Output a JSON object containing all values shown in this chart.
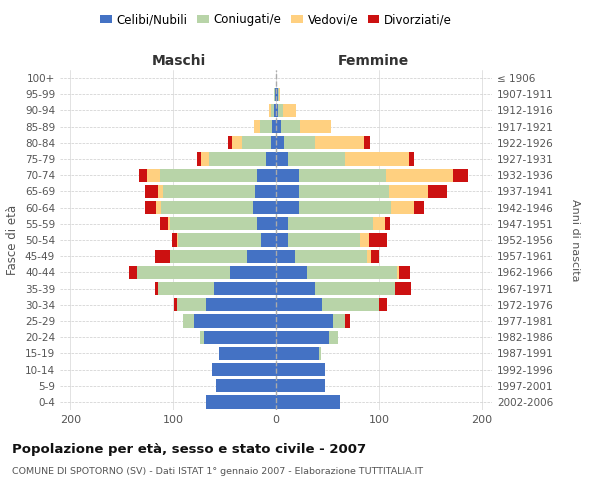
{
  "age_groups": [
    "0-4",
    "5-9",
    "10-14",
    "15-19",
    "20-24",
    "25-29",
    "30-34",
    "35-39",
    "40-44",
    "45-49",
    "50-54",
    "55-59",
    "60-64",
    "65-69",
    "70-74",
    "75-79",
    "80-84",
    "85-89",
    "90-94",
    "95-99",
    "100+"
  ],
  "birth_years": [
    "2002-2006",
    "1997-2001",
    "1992-1996",
    "1987-1991",
    "1982-1986",
    "1977-1981",
    "1972-1976",
    "1967-1971",
    "1962-1966",
    "1957-1961",
    "1952-1956",
    "1947-1951",
    "1942-1946",
    "1937-1941",
    "1932-1936",
    "1927-1931",
    "1922-1926",
    "1917-1921",
    "1912-1916",
    "1907-1911",
    "≤ 1906"
  ],
  "maschi": {
    "celibi": [
      68,
      58,
      62,
      55,
      70,
      80,
      68,
      60,
      45,
      28,
      15,
      18,
      22,
      20,
      18,
      10,
      5,
      4,
      2,
      1,
      0
    ],
    "coniugati": [
      0,
      0,
      0,
      0,
      4,
      10,
      28,
      55,
      90,
      75,
      80,
      85,
      90,
      90,
      95,
      55,
      28,
      12,
      3,
      1,
      0
    ],
    "vedovi": [
      0,
      0,
      0,
      0,
      0,
      0,
      0,
      0,
      0,
      0,
      1,
      2,
      5,
      5,
      12,
      8,
      10,
      5,
      2,
      0,
      0
    ],
    "divorziati": [
      0,
      0,
      0,
      0,
      0,
      0,
      3,
      3,
      8,
      15,
      5,
      8,
      10,
      12,
      8,
      4,
      4,
      0,
      0,
      0,
      0
    ]
  },
  "femmine": {
    "nubili": [
      62,
      48,
      48,
      42,
      52,
      55,
      45,
      38,
      30,
      18,
      12,
      12,
      22,
      22,
      22,
      12,
      8,
      5,
      2,
      2,
      0
    ],
    "coniugate": [
      0,
      0,
      0,
      2,
      8,
      12,
      55,
      78,
      88,
      70,
      70,
      82,
      90,
      88,
      85,
      55,
      30,
      18,
      5,
      1,
      0
    ],
    "vedove": [
      0,
      0,
      0,
      0,
      0,
      0,
      0,
      0,
      2,
      4,
      8,
      12,
      22,
      38,
      65,
      62,
      48,
      30,
      12,
      1,
      0
    ],
    "divorziate": [
      0,
      0,
      0,
      0,
      0,
      5,
      8,
      15,
      10,
      8,
      18,
      5,
      10,
      18,
      15,
      5,
      5,
      0,
      0,
      0,
      0
    ]
  },
  "colors": {
    "celibi_nubili": "#4472C4",
    "coniugati": "#B8D4A8",
    "vedovi": "#FFD080",
    "divorziati": "#CC1111"
  },
  "xlim": 210,
  "title": "Popolazione per età, sesso e stato civile - 2007",
  "subtitle": "COMUNE DI SPOTORNO (SV) - Dati ISTAT 1° gennaio 2007 - Elaborazione TUTTITALIA.IT",
  "ylabel_left": "Fasce di età",
  "ylabel_right": "Anni di nascita",
  "xlabel_maschi": "Maschi",
  "xlabel_femmine": "Femmine",
  "legend_labels": [
    "Celibi/Nubili",
    "Coniugati/e",
    "Vedovi/e",
    "Divorziati/e"
  ],
  "background_color": "#ffffff",
  "grid_color": "#cccccc"
}
